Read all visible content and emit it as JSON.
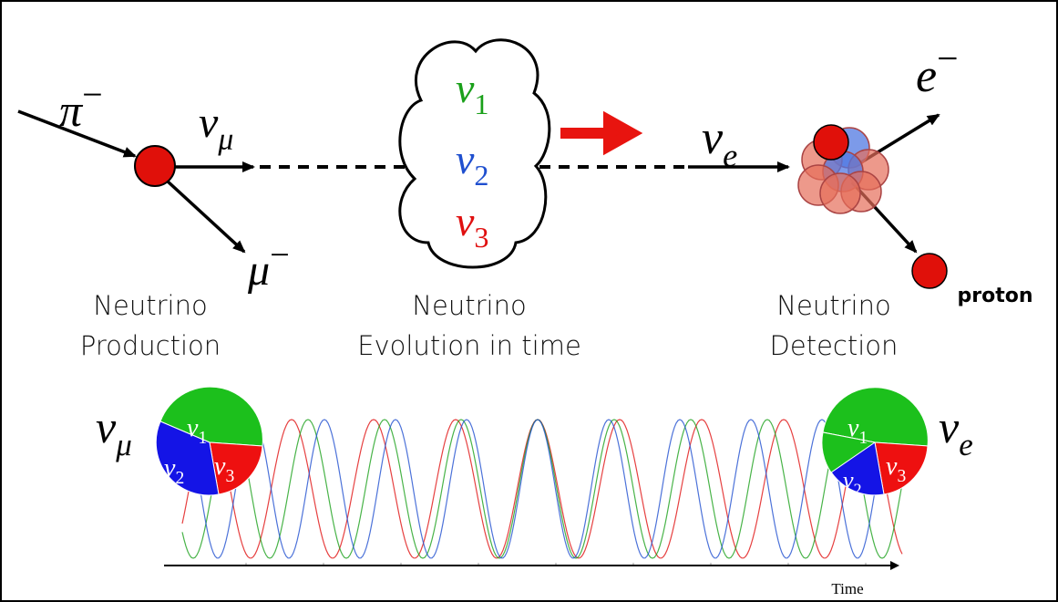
{
  "production": {
    "pion": {
      "symbol": "π",
      "sup": "−"
    },
    "neutrino": {
      "symbol": "ν",
      "sub": "μ"
    },
    "muon": {
      "symbol": "μ",
      "sup": "−"
    },
    "label": [
      "Neutrino",
      "Production"
    ]
  },
  "evolution": {
    "states": [
      {
        "symbol": "ν",
        "sub": "1"
      },
      {
        "symbol": "ν",
        "sub": "2"
      },
      {
        "symbol": "ν",
        "sub": "3"
      }
    ],
    "label": [
      "Neutrino",
      "Evolution in time"
    ]
  },
  "detection": {
    "neutrino": {
      "symbol": "ν",
      "sub": "e"
    },
    "electron": {
      "symbol": "e",
      "sup": "−"
    },
    "proton": "proton",
    "label": [
      "Neutrino",
      "Detection"
    ]
  },
  "oscillation": {
    "initial": {
      "symbol": "ν",
      "sub": "μ"
    },
    "initial_pie": [
      {
        "symbol": "ν",
        "sub": "1"
      },
      {
        "symbol": "ν",
        "sub": "2"
      },
      {
        "symbol": "ν",
        "sub": "3"
      }
    ],
    "final": {
      "symbol": "ν",
      "sub": "e"
    },
    "final_pie": [
      {
        "symbol": "ν",
        "sub": "1"
      },
      {
        "symbol": "ν",
        "sub": "2"
      },
      {
        "symbol": "ν",
        "sub": "3"
      }
    ],
    "axis_label": "Time"
  }
}
